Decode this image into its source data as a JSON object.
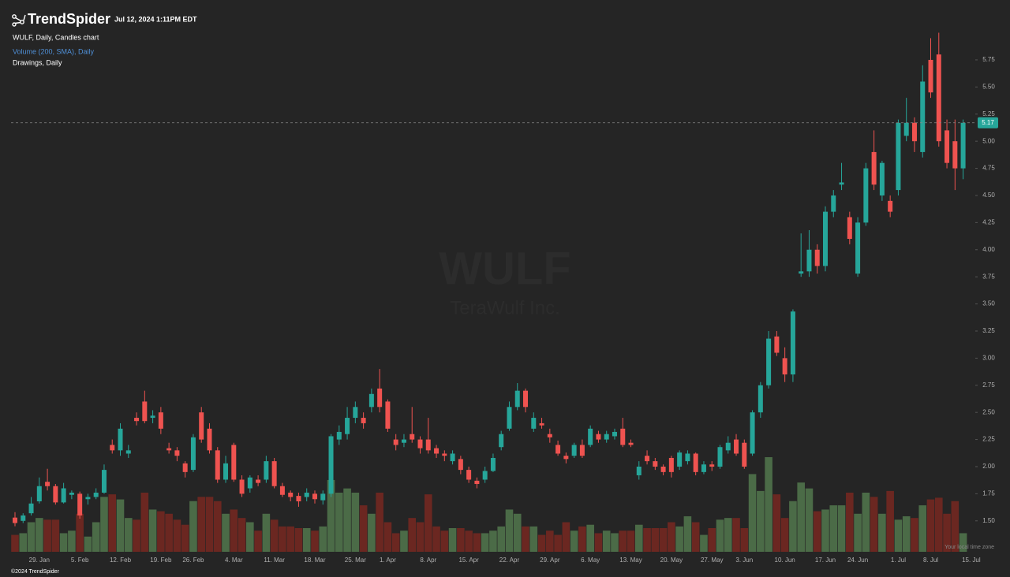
{
  "header": {
    "brand": "TrendSpider",
    "timestamp": "Jul 12, 2024 1:11PM EDT"
  },
  "legend": {
    "main": "WULF, Daily, Candles chart",
    "volume": "Volume (200, SMA), Daily",
    "drawings": "Drawings, Daily"
  },
  "watermark": {
    "symbol": "WULF",
    "company": "TeraWulf Inc."
  },
  "footer": {
    "copyright": "©2024 TrendSpider",
    "timezone_note": "Your local time zone"
  },
  "chart_data": {
    "type": "candlestick",
    "up_color": "#26a69a",
    "down_color": "#ef5350",
    "volume_up_color": "#4b6b47",
    "volume_down_color": "#6b2721",
    "categories": [
      null,
      null,
      null,
      "29. Jan",
      null,
      null,
      null,
      null,
      "5. Feb",
      null,
      null,
      null,
      null,
      "12. Feb",
      null,
      null,
      null,
      null,
      "19. Feb",
      null,
      null,
      null,
      "26. Feb",
      null,
      null,
      null,
      null,
      "4. Mar",
      null,
      null,
      null,
      null,
      "11. Mar",
      null,
      null,
      null,
      null,
      "18. Mar",
      null,
      null,
      null,
      null,
      "25. Mar",
      null,
      null,
      null,
      "1. Apr",
      null,
      null,
      null,
      null,
      "8. Apr",
      null,
      null,
      null,
      null,
      "15. Apr",
      null,
      null,
      null,
      null,
      "22. Apr",
      null,
      null,
      null,
      null,
      "29. Apr",
      null,
      null,
      null,
      null,
      "6. May",
      null,
      null,
      null,
      null,
      "13. May",
      null,
      null,
      null,
      null,
      "20. May",
      null,
      null,
      null,
      null,
      "27. May",
      null,
      null,
      null,
      "3. Jun",
      null,
      null,
      null,
      null,
      "10. Jun",
      null,
      null,
      null,
      null,
      "17. Jun",
      null,
      null,
      null,
      "24. Jun",
      null,
      null,
      null,
      null,
      "1. Jul",
      null,
      null,
      null,
      "8. Jul",
      null,
      null,
      null,
      null
    ],
    "x_end_label": "15. Jul",
    "open": [
      1.53,
      1.5,
      1.57,
      1.68,
      1.86,
      1.82,
      1.67,
      1.74,
      1.75,
      1.7,
      1.72,
      1.76,
      2.2,
      2.15,
      2.12,
      2.45,
      2.6,
      2.45,
      2.5,
      2.17,
      2.15,
      2.03,
      1.97,
      2.5,
      2.35,
      2.15,
      1.88,
      2.2,
      1.88,
      1.8,
      1.88,
      1.88,
      2.05,
      1.82,
      1.76,
      1.73,
      1.72,
      1.75,
      1.69,
      1.75,
      2.25,
      2.3,
      2.45,
      2.45,
      2.55,
      2.72,
      2.6,
      2.25,
      2.22,
      2.3,
      2.25,
      2.25,
      2.17,
      2.12,
      2.05,
      2.07,
      1.97,
      1.87,
      1.88,
      1.96,
      2.18,
      2.35,
      2.55,
      2.7,
      2.35,
      2.4,
      2.3,
      2.2,
      2.1,
      2.1,
      2.2,
      2.2,
      2.3,
      2.25,
      2.28,
      2.35,
      2.22,
      1.92,
      2.1,
      2.05,
      2.0,
      2.08,
      2.0,
      2.05,
      2.12,
      1.95,
      2.02,
      2.0,
      2.15,
      2.25,
      2.22,
      2.12,
      2.5,
      2.75,
      3.2,
      3.0,
      2.85,
      3.78,
      3.8,
      4.0,
      3.85,
      4.35,
      4.6,
      4.3,
      3.78,
      4.25,
      4.9,
      4.5,
      4.45,
      4.55,
      5.05,
      5.17,
      4.9,
      5.75,
      5.8,
      5.1,
      5.0,
      4.75
    ],
    "high": [
      1.58,
      1.57,
      1.72,
      1.9,
      1.98,
      1.84,
      1.85,
      1.78,
      1.77,
      1.75,
      1.8,
      2.02,
      2.25,
      2.4,
      2.2,
      2.5,
      2.7,
      2.52,
      2.55,
      2.22,
      2.18,
      2.05,
      2.3,
      2.55,
      2.4,
      2.18,
      2.1,
      2.22,
      1.92,
      1.92,
      1.92,
      2.1,
      2.08,
      1.85,
      1.78,
      1.76,
      1.8,
      1.78,
      1.78,
      2.3,
      2.38,
      2.55,
      2.6,
      2.5,
      2.72,
      2.9,
      2.62,
      2.3,
      2.3,
      2.55,
      2.28,
      2.45,
      2.2,
      2.15,
      2.15,
      2.1,
      2.0,
      1.9,
      2.0,
      2.12,
      2.33,
      2.6,
      2.77,
      2.72,
      2.5,
      2.45,
      2.35,
      2.24,
      2.13,
      2.22,
      2.25,
      2.38,
      2.33,
      2.33,
      2.35,
      2.45,
      2.25,
      2.05,
      2.15,
      2.08,
      2.02,
      2.1,
      2.15,
      2.15,
      2.13,
      2.05,
      2.05,
      2.2,
      2.28,
      2.3,
      2.25,
      2.52,
      2.78,
      3.25,
      3.25,
      3.1,
      3.45,
      4.15,
      4.18,
      4.05,
      4.4,
      4.55,
      4.8,
      4.35,
      4.3,
      4.8,
      5.1,
      4.82,
      4.5,
      5.2,
      5.4,
      5.22,
      5.7,
      5.95,
      6.0,
      5.2,
      5.2,
      5.2
    ],
    "low": [
      1.45,
      1.48,
      1.55,
      1.66,
      1.78,
      1.65,
      1.66,
      1.7,
      1.52,
      1.65,
      1.7,
      1.75,
      2.12,
      2.1,
      2.08,
      2.38,
      2.4,
      2.4,
      2.3,
      2.12,
      2.05,
      1.9,
      1.95,
      2.22,
      2.12,
      1.85,
      1.85,
      1.86,
      1.72,
      1.76,
      1.82,
      1.85,
      1.8,
      1.72,
      1.68,
      1.63,
      1.68,
      1.66,
      1.65,
      1.72,
      2.2,
      2.25,
      2.4,
      2.35,
      2.5,
      2.5,
      2.32,
      2.15,
      2.18,
      2.22,
      2.12,
      2.12,
      2.08,
      2.05,
      2.02,
      1.93,
      1.85,
      1.8,
      1.85,
      1.95,
      2.15,
      2.33,
      2.52,
      2.5,
      2.32,
      2.35,
      2.22,
      2.1,
      2.03,
      2.08,
      2.08,
      2.18,
      2.22,
      2.22,
      2.25,
      2.18,
      2.18,
      1.88,
      2.02,
      1.97,
      1.92,
      1.9,
      1.97,
      2.02,
      1.92,
      1.93,
      1.96,
      1.98,
      2.12,
      2.1,
      1.98,
      2.1,
      2.45,
      2.72,
      3.02,
      2.78,
      2.78,
      3.75,
      3.75,
      3.78,
      3.8,
      4.3,
      4.55,
      4.05,
      3.75,
      4.22,
      4.55,
      4.45,
      4.3,
      4.5,
      5.0,
      4.9,
      4.85,
      5.4,
      4.95,
      4.75,
      4.55,
      4.65
    ],
    "close": [
      1.48,
      1.55,
      1.66,
      1.82,
      1.82,
      1.67,
      1.8,
      1.76,
      1.55,
      1.72,
      1.76,
      1.97,
      2.15,
      2.35,
      2.15,
      2.42,
      2.42,
      2.47,
      2.35,
      2.15,
      2.1,
      1.95,
      2.27,
      2.25,
      2.15,
      1.88,
      2.03,
      1.88,
      1.75,
      1.9,
      1.85,
      2.05,
      1.82,
      1.74,
      1.72,
      1.68,
      1.76,
      1.7,
      1.75,
      2.28,
      2.32,
      2.45,
      2.55,
      2.4,
      2.67,
      2.55,
      2.35,
      2.2,
      2.25,
      2.25,
      2.17,
      2.15,
      2.12,
      2.1,
      2.12,
      1.97,
      1.88,
      1.84,
      1.96,
      2.08,
      2.3,
      2.55,
      2.7,
      2.55,
      2.45,
      2.38,
      2.27,
      2.12,
      2.07,
      2.2,
      2.1,
      2.35,
      2.25,
      2.3,
      2.32,
      2.2,
      2.2,
      2.0,
      2.05,
      2.0,
      1.95,
      1.95,
      2.13,
      2.12,
      1.95,
      2.02,
      2.0,
      2.18,
      2.22,
      2.12,
      2.0,
      2.5,
      2.75,
      3.18,
      3.05,
      2.85,
      3.43,
      3.8,
      4.0,
      3.85,
      4.35,
      4.5,
      4.62,
      4.1,
      4.25,
      4.75,
      4.6,
      4.8,
      4.35,
      5.17,
      5.17,
      5.0,
      5.55,
      5.45,
      5.0,
      4.8,
      4.75,
      5.17
    ],
    "volume": [
      20,
      22,
      35,
      40,
      38,
      38,
      22,
      25,
      45,
      18,
      35,
      65,
      68,
      62,
      40,
      38,
      70,
      50,
      48,
      45,
      38,
      32,
      60,
      65,
      65,
      60,
      45,
      50,
      40,
      35,
      25,
      45,
      38,
      30,
      30,
      28,
      28,
      25,
      30,
      85,
      70,
      75,
      70,
      55,
      45,
      70,
      35,
      22,
      25,
      40,
      35,
      68,
      30,
      25,
      28,
      28,
      25,
      22,
      22,
      25,
      30,
      50,
      45,
      30,
      30,
      20,
      25,
      20,
      35,
      25,
      30,
      32,
      22,
      25,
      22,
      25,
      25,
      32,
      28,
      28,
      28,
      35,
      30,
      42,
      35,
      20,
      28,
      38,
      40,
      40,
      28,
      92,
      72,
      112,
      68,
      40,
      60,
      82,
      75,
      48,
      50,
      55,
      55,
      70,
      45,
      70,
      65,
      45,
      72,
      38,
      42,
      40,
      55,
      62,
      64,
      45,
      60,
      22
    ],
    "last_price": 5.17,
    "ylim": [
      1.215,
      6.302
    ],
    "yticks": [
      {
        "value": 1.5,
        "label": "1.50"
      },
      {
        "value": 1.75,
        "label": "1.75"
      },
      {
        "value": 2,
        "label": "2.00"
      },
      {
        "value": 2.25,
        "label": "2.25"
      },
      {
        "value": 2.5,
        "label": "2.50"
      },
      {
        "value": 2.75,
        "label": "2.75"
      },
      {
        "value": 3,
        "label": "3.00"
      },
      {
        "value": 3.25,
        "label": "3.25"
      },
      {
        "value": 3.5,
        "label": "3.50"
      },
      {
        "value": 3.75,
        "label": "3.75"
      },
      {
        "value": 4,
        "label": "4.00"
      },
      {
        "value": 4.25,
        "label": "4.25"
      },
      {
        "value": 4.5,
        "label": "4.50"
      },
      {
        "value": 4.75,
        "label": "4.75"
      },
      {
        "value": 5,
        "label": "5.00"
      },
      {
        "value": 5.25,
        "label": "5.25"
      },
      {
        "value": 5.5,
        "label": "5.50"
      },
      {
        "value": 5.75,
        "label": "5.75"
      }
    ]
  }
}
